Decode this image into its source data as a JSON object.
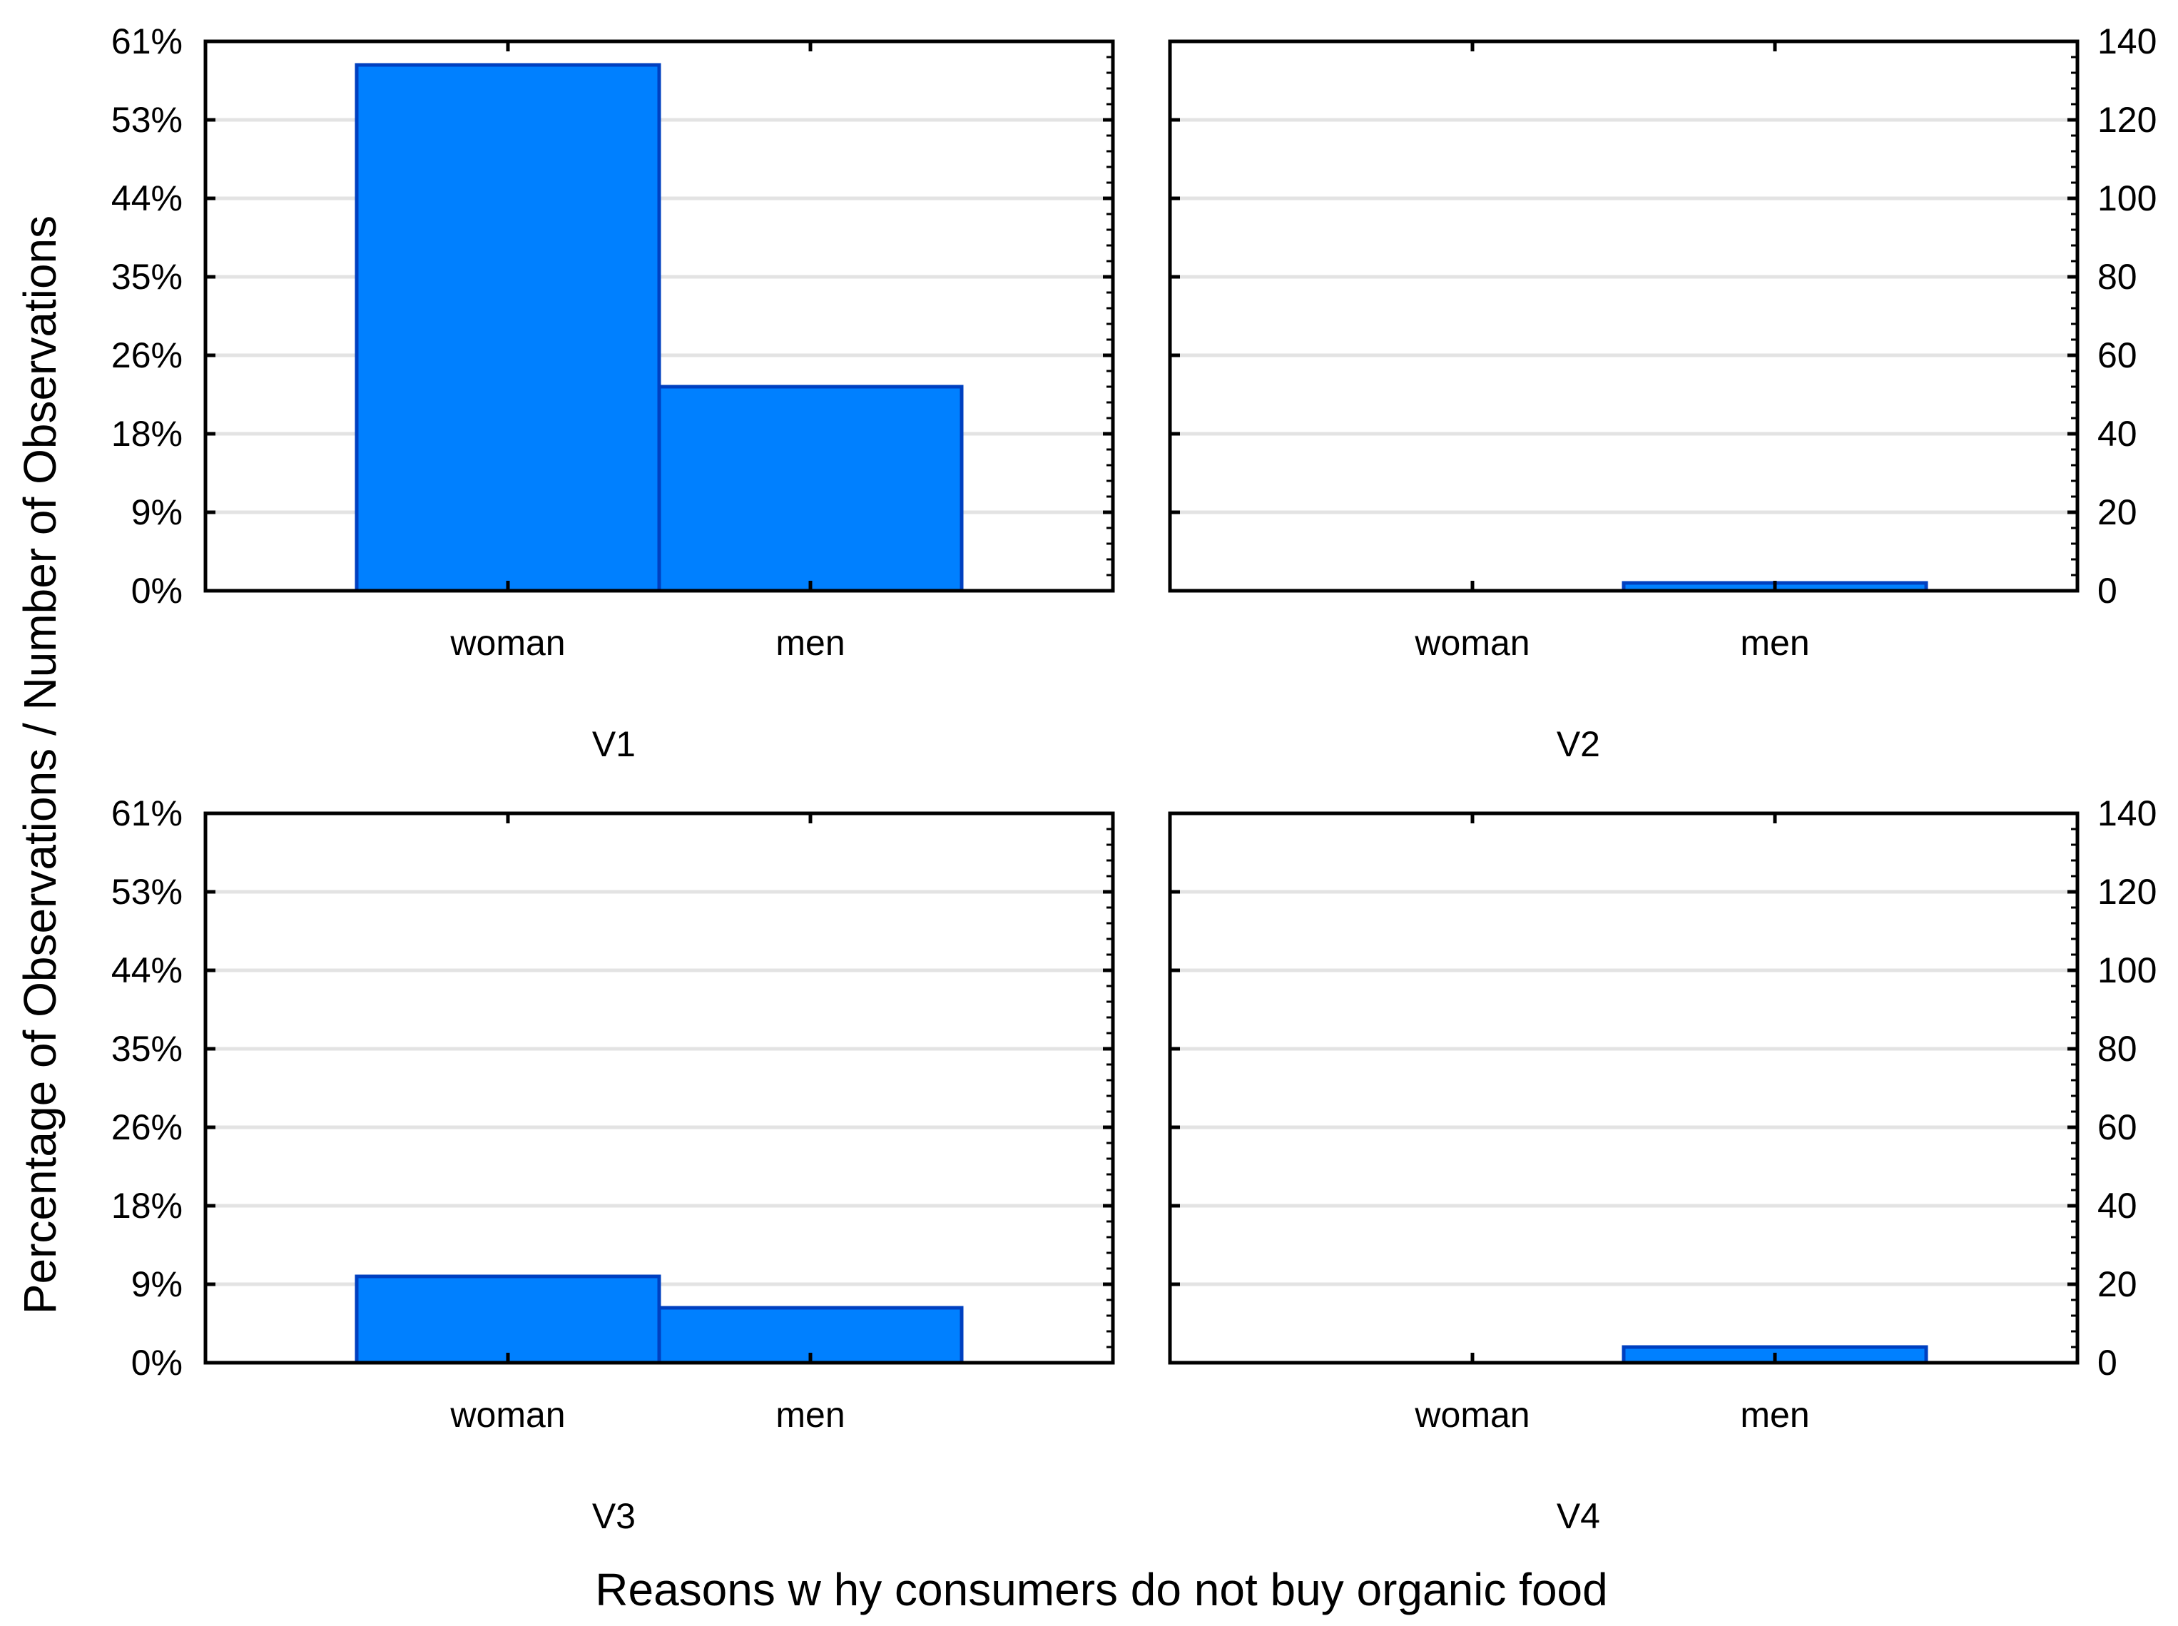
{
  "chart_data": {
    "type": "bar",
    "layout": "2x2 panels",
    "ylabel": "Percentage of Observations / Number of Observations",
    "xlabel": "Reasons w hy consumers do not buy organic food",
    "left_axis_ticks": [
      "0%",
      "9%",
      "18%",
      "26%",
      "35%",
      "44%",
      "53%",
      "61%"
    ],
    "right_axis_ticks": [
      "0",
      "20",
      "40",
      "60",
      "80",
      "100",
      "120",
      "140"
    ],
    "count_range": [
      0,
      140
    ],
    "categories": [
      "woman",
      "men"
    ],
    "bar_color": "#0080FF",
    "bar_edge_color": "#0040C0",
    "grid_color": "#e3e3e3",
    "panels": [
      {
        "name": "V1",
        "counts": [
          134,
          52
        ]
      },
      {
        "name": "V2",
        "counts": [
          0,
          2
        ]
      },
      {
        "name": "V3",
        "counts": [
          22,
          14
        ]
      },
      {
        "name": "V4",
        "counts": [
          0,
          4
        ]
      }
    ]
  }
}
